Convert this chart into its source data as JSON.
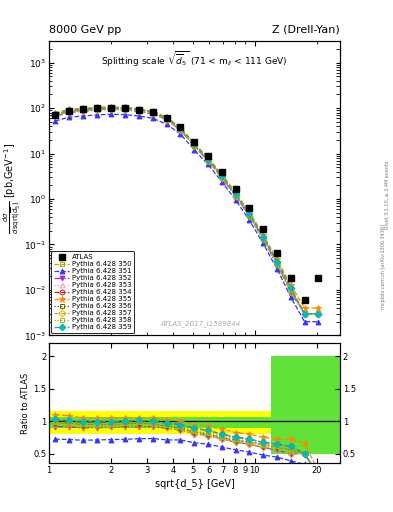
{
  "title_top_left": "8000 GeV pp",
  "title_top_right": "Z (Drell-Yan)",
  "main_title": "Splitting scale $\\sqrt{\\overline{d}_5}$ (71 < m$_{ll}$ < 111 GeV)",
  "watermark": "ATLAS_2017_I1589844",
  "side_text1": "mcplots.cern.ch [arXiv:1306.3436]",
  "side_text2": "Rivet 3.1.10, ≥ 2.4M events",
  "ylabel_main": "dσ/dsqrt(d_5) [pb,GeV⁻¹]",
  "ylabel_ratio": "Ratio to ATLAS",
  "xlabel": "sqrt{d_5} [GeV]",
  "xlim": [
    1.0,
    26.0
  ],
  "ylim_main": [
    0.001,
    3000.0
  ],
  "ylim_ratio": [
    0.35,
    2.2
  ],
  "x_data": [
    1.07,
    1.25,
    1.46,
    1.71,
    2.0,
    2.34,
    2.73,
    3.19,
    3.73,
    4.35,
    5.08,
    5.93,
    6.92,
    8.08,
    9.43,
    11.0,
    12.84,
    14.98,
    17.49,
    20.4
  ],
  "atlas_y": [
    72,
    88,
    95,
    100,
    102,
    100,
    92,
    82,
    62,
    38,
    18,
    9.0,
    4.0,
    1.7,
    0.65,
    0.22,
    0.065,
    0.018,
    0.006,
    0.018
  ],
  "series": [
    {
      "label": "Pythia 6.428 350",
      "color": "#aaaa00",
      "marker": "s",
      "linestyle": "--",
      "filled": false,
      "y": [
        70,
        85,
        90,
        95,
        97,
        95,
        88,
        78,
        57,
        34,
        15,
        7.2,
        3.0,
        1.2,
        0.44,
        0.14,
        0.04,
        0.01,
        0.003,
        0.003
      ]
    },
    {
      "label": "Pythia 6.428 351",
      "color": "#3333ff",
      "marker": "^",
      "linestyle": "--",
      "filled": true,
      "y": [
        52,
        63,
        67,
        71,
        73,
        72,
        67,
        60,
        44,
        27,
        12,
        5.8,
        2.4,
        0.95,
        0.34,
        0.105,
        0.029,
        0.007,
        0.002,
        0.002
      ]
    },
    {
      "label": "Pythia 6.428 352",
      "color": "#9933cc",
      "marker": "v",
      "linestyle": "-.",
      "filled": true,
      "y": [
        66,
        80,
        85,
        90,
        92,
        91,
        84,
        75,
        55,
        33,
        14.5,
        7.0,
        2.9,
        1.15,
        0.42,
        0.13,
        0.036,
        0.009,
        0.003,
        0.003
      ]
    },
    {
      "label": "Pythia 6.428 353",
      "color": "#ff99bb",
      "marker": "^",
      "linestyle": ":",
      "filled": false,
      "y": [
        71,
        86,
        91,
        96,
        98,
        97,
        90,
        80,
        58,
        35,
        15.5,
        7.5,
        3.1,
        1.25,
        0.46,
        0.145,
        0.041,
        0.011,
        0.003,
        0.003
      ]
    },
    {
      "label": "Pythia 6.428 354",
      "color": "#dd1111",
      "marker": "o",
      "linestyle": "--",
      "filled": false,
      "y": [
        73,
        88,
        93,
        98,
        100,
        99,
        92,
        82,
        60,
        36,
        16,
        7.7,
        3.2,
        1.28,
        0.47,
        0.148,
        0.042,
        0.011,
        0.003,
        0.003
      ]
    },
    {
      "label": "Pythia 6.428 355",
      "color": "#ff8800",
      "marker": "*",
      "linestyle": "--",
      "filled": true,
      "y": [
        79,
        95,
        100,
        105,
        107,
        105,
        97,
        86,
        63,
        38,
        17,
        8.3,
        3.5,
        1.4,
        0.52,
        0.165,
        0.047,
        0.013,
        0.004,
        0.004
      ]
    },
    {
      "label": "Pythia 6.428 356",
      "color": "#556600",
      "marker": "s",
      "linestyle": ":",
      "filled": false,
      "y": [
        70,
        85,
        90,
        95,
        97,
        96,
        89,
        79,
        57,
        34,
        15,
        7.2,
        3.0,
        1.2,
        0.44,
        0.138,
        0.039,
        0.01,
        0.003,
        0.003
      ]
    },
    {
      "label": "Pythia 6.428 357",
      "color": "#ddaa00",
      "marker": "D",
      "linestyle": "--",
      "filled": false,
      "y": [
        69,
        83,
        88,
        93,
        95,
        94,
        87,
        77,
        56,
        33,
        14.5,
        7.0,
        2.9,
        1.15,
        0.42,
        0.132,
        0.037,
        0.009,
        0.003,
        0.003
      ]
    },
    {
      "label": "Pythia 6.428 358",
      "color": "#aabb00",
      "marker": "s",
      "linestyle": ":",
      "filled": false,
      "y": [
        71,
        86,
        91,
        96,
        98,
        97,
        90,
        80,
        58,
        35,
        15.2,
        7.3,
        3.05,
        1.22,
        0.445,
        0.14,
        0.04,
        0.01,
        0.003,
        0.003
      ]
    },
    {
      "label": "Pythia 6.428 359",
      "color": "#00bbbb",
      "marker": "D",
      "linestyle": "--",
      "filled": true,
      "y": [
        74,
        89,
        94,
        99,
        101,
        100,
        93,
        82,
        60,
        36,
        16,
        7.7,
        3.2,
        1.28,
        0.47,
        0.148,
        0.042,
        0.011,
        0.003,
        0.003
      ]
    }
  ],
  "ratio_yellow_x1": 1.0,
  "ratio_yellow_x2": 12.0,
  "ratio_yellow_x3": 26.0,
  "ratio_yellow_ylo1": 0.8,
  "ratio_yellow_yhi1": 1.15,
  "ratio_yellow_ylo2": 0.5,
  "ratio_yellow_yhi2": 2.0,
  "ratio_green_ylo1": 0.9,
  "ratio_green_yhi1": 1.07,
  "ratio_green_ylo2": 0.5,
  "ratio_green_yhi2": 2.0
}
